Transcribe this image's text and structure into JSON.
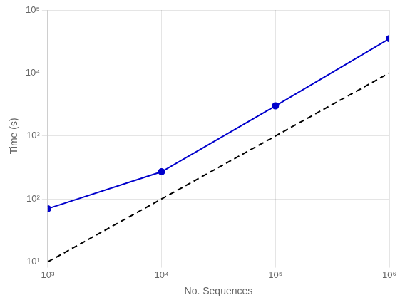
{
  "chart_data": {
    "type": "line",
    "xlabel": "No. Sequences",
    "ylabel": "Time (s)",
    "log": true,
    "grid": true,
    "xlim": [
      1000,
      1000000
    ],
    "ylim": [
      10,
      100000
    ],
    "xticks": [
      {
        "value": 1000,
        "label": "10³"
      },
      {
        "value": 10000,
        "label": "10⁴"
      },
      {
        "value": 100000,
        "label": "10⁵"
      },
      {
        "value": 1000000,
        "label": "10⁶"
      }
    ],
    "yticks": [
      {
        "value": 10,
        "label": "10¹"
      },
      {
        "value": 100,
        "label": "10²"
      },
      {
        "value": 1000,
        "label": "10³"
      },
      {
        "value": 10000,
        "label": "10⁴"
      },
      {
        "value": 100000,
        "label": "10⁵"
      }
    ],
    "series": [
      {
        "color": "#000000",
        "line_style": "dashed",
        "marker": "none",
        "x": [
          1000,
          1000000
        ],
        "values": [
          10,
          10000
        ]
      },
      {
        "color": "#0000cc",
        "line_style": "solid",
        "marker": "circle",
        "x": [
          1000,
          10000,
          100000,
          1000000
        ],
        "values": [
          70,
          270,
          3000,
          35000
        ]
      }
    ]
  }
}
